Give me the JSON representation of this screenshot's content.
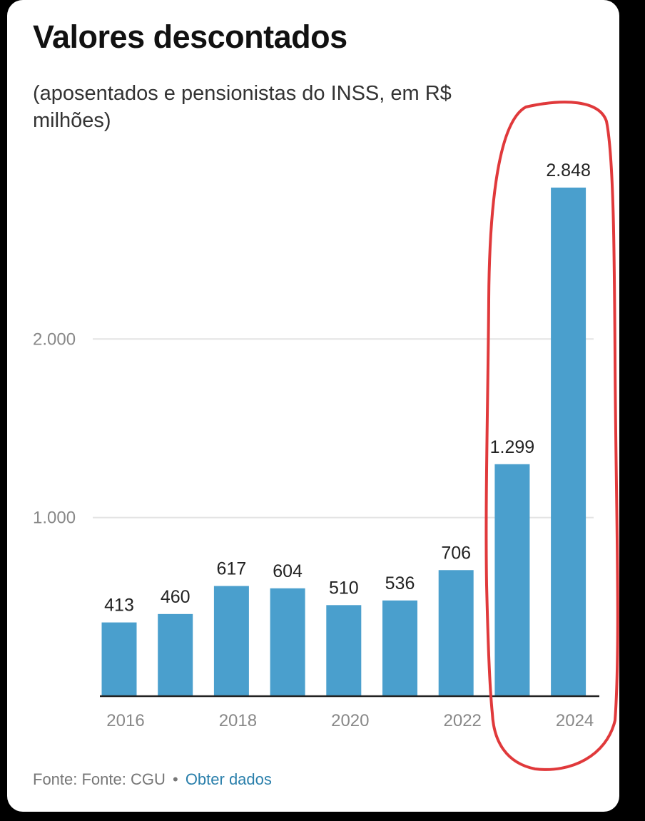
{
  "chart_data": {
    "type": "bar",
    "title": "Valores descontados",
    "subtitle": "(aposentados e pensionistas do INSS, em R$ milhões)",
    "categories": [
      "2016",
      "2017",
      "2018",
      "2019",
      "2020",
      "2021",
      "2022",
      "2023",
      "2024"
    ],
    "x_tick_labels": [
      "2016",
      "",
      "2018",
      "",
      "2020",
      "",
      "2022",
      "",
      "2024"
    ],
    "values": [
      413,
      460,
      617,
      604,
      510,
      536,
      706,
      1299,
      2848
    ],
    "value_labels": [
      "413",
      "460",
      "617",
      "604",
      "510",
      "536",
      "706",
      "1.299",
      "2.848"
    ],
    "y_ticks": [
      1000,
      2000
    ],
    "y_tick_labels": [
      "1.000",
      "2.000"
    ],
    "ylim": [
      0,
      2848
    ],
    "grid": true,
    "bar_color": "#4a9fcd",
    "highlight": {
      "categories": [
        "2023",
        "2024"
      ],
      "color": "#e0393b"
    }
  },
  "footer": {
    "source": "Fonte: Fonte: CGU",
    "separator": "•",
    "link": "Obter dados",
    "link_color": "#2a7fab"
  }
}
